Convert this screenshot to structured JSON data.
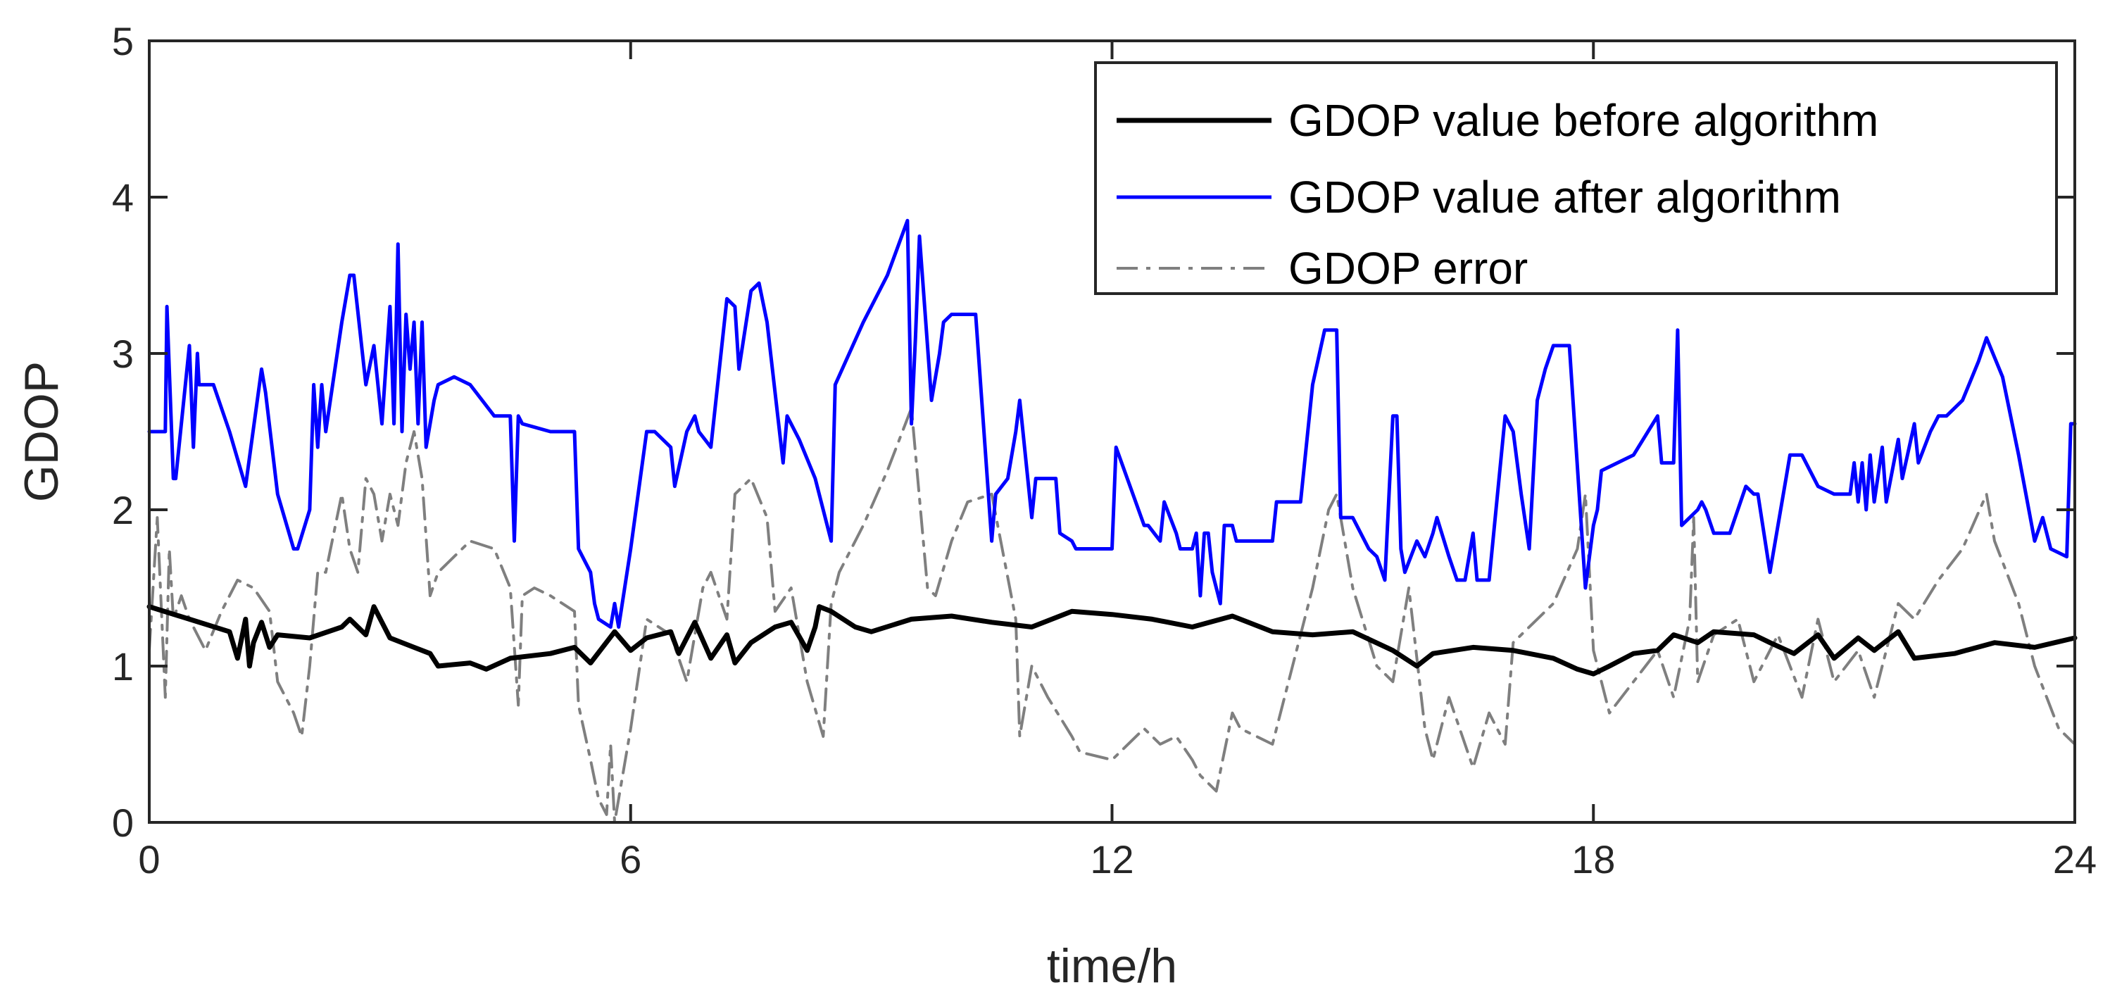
{
  "chart_data": {
    "type": "line",
    "title": "",
    "xlabel": "time/h",
    "ylabel": "GDOP",
    "xlim": [
      0,
      24
    ],
    "ylim": [
      0,
      5
    ],
    "xticks": [
      0,
      6,
      12,
      18,
      24
    ],
    "yticks": [
      0,
      1,
      2,
      3,
      4,
      5
    ],
    "grid": false,
    "legend_position": "top-right",
    "series": [
      {
        "name": "GDOP value before algorithm",
        "color": "#000000",
        "style": "solid",
        "x": [
          0,
          0.5,
          1.0,
          1.1,
          1.2,
          1.25,
          1.3,
          1.4,
          1.5,
          1.6,
          2.0,
          2.4,
          2.5,
          2.7,
          2.8,
          3.0,
          3.3,
          3.5,
          3.6,
          4.0,
          4.2,
          4.5,
          5.0,
          5.3,
          5.5,
          5.8,
          6.0,
          6.2,
          6.5,
          6.6,
          6.8,
          7.0,
          7.2,
          7.3,
          7.5,
          7.8,
          8.0,
          8.2,
          8.3,
          8.35,
          8.5,
          8.8,
          9.0,
          9.5,
          10.0,
          10.5,
          11.0,
          11.5,
          12.0,
          12.5,
          13.0,
          13.5,
          14.0,
          14.5,
          15.0,
          15.5,
          15.8,
          16.0,
          16.5,
          17.0,
          17.5,
          17.8,
          18.0,
          18.2,
          18.5,
          18.8,
          19.0,
          19.3,
          19.5,
          20.0,
          20.2,
          20.5,
          20.8,
          21.0,
          21.3,
          21.5,
          21.8,
          22.0,
          22.5,
          23.0,
          23.5,
          24.0
        ],
        "values": [
          1.38,
          1.3,
          1.22,
          1.05,
          1.3,
          1.0,
          1.15,
          1.28,
          1.12,
          1.2,
          1.18,
          1.25,
          1.3,
          1.2,
          1.38,
          1.18,
          1.12,
          1.08,
          1.0,
          1.02,
          0.98,
          1.05,
          1.08,
          1.12,
          1.02,
          1.22,
          1.1,
          1.18,
          1.22,
          1.08,
          1.28,
          1.05,
          1.2,
          1.02,
          1.15,
          1.25,
          1.28,
          1.1,
          1.25,
          1.38,
          1.35,
          1.25,
          1.22,
          1.3,
          1.32,
          1.28,
          1.25,
          1.35,
          1.33,
          1.3,
          1.25,
          1.32,
          1.22,
          1.2,
          1.22,
          1.1,
          1.0,
          1.08,
          1.12,
          1.1,
          1.05,
          0.98,
          0.95,
          1.0,
          1.08,
          1.1,
          1.2,
          1.15,
          1.22,
          1.2,
          1.15,
          1.08,
          1.2,
          1.05,
          1.18,
          1.1,
          1.22,
          1.05,
          1.08,
          1.15,
          1.12,
          1.18
        ]
      },
      {
        "name": "GDOP value after algorithm",
        "color": "#0000ff",
        "style": "solid",
        "x": [
          0,
          0.2,
          0.22,
          0.3,
          0.33,
          0.5,
          0.55,
          0.6,
          0.62,
          0.8,
          1.0,
          1.2,
          1.4,
          1.45,
          1.6,
          1.8,
          1.85,
          2.0,
          2.05,
          2.1,
          2.15,
          2.2,
          2.4,
          2.5,
          2.55,
          2.7,
          2.8,
          2.9,
          3.0,
          3.05,
          3.1,
          3.15,
          3.2,
          3.25,
          3.3,
          3.35,
          3.4,
          3.45,
          3.5,
          3.55,
          3.6,
          3.8,
          4.0,
          4.3,
          4.5,
          4.55,
          4.6,
          4.65,
          5.0,
          5.3,
          5.35,
          5.5,
          5.55,
          5.6,
          5.75,
          5.8,
          5.85,
          6.0,
          6.2,
          6.3,
          6.5,
          6.55,
          6.7,
          6.8,
          6.85,
          7.0,
          7.2,
          7.3,
          7.35,
          7.5,
          7.6,
          7.7,
          7.9,
          7.95,
          8.1,
          8.3,
          8.5,
          8.55,
          8.9,
          9.2,
          9.45,
          9.5,
          9.55,
          9.6,
          9.75,
          9.8,
          9.85,
          9.9,
          10.0,
          10.3,
          10.5,
          10.55,
          10.7,
          10.8,
          10.85,
          11.0,
          11.05,
          11.3,
          11.35,
          11.5,
          11.55,
          11.6,
          11.9,
          12.0,
          12.05,
          12.4,
          12.45,
          12.6,
          12.65,
          12.8,
          12.85,
          13.0,
          13.05,
          13.1,
          13.15,
          13.2,
          13.25,
          13.35,
          13.4,
          13.5,
          13.55,
          13.8,
          14.0,
          14.05,
          14.25,
          14.3,
          14.35,
          14.5,
          14.65,
          14.8,
          14.85,
          15.0,
          15.2,
          15.3,
          15.4,
          15.5,
          15.55,
          15.6,
          15.65,
          15.8,
          15.9,
          16.0,
          16.05,
          16.2,
          16.3,
          16.4,
          16.5,
          16.55,
          16.7,
          16.9,
          17.0,
          17.1,
          17.2,
          17.3,
          17.4,
          17.5,
          17.7,
          17.9,
          18.0,
          18.05,
          18.1,
          18.5,
          18.8,
          18.85,
          19.0,
          19.05,
          19.1,
          19.3,
          19.35,
          19.4,
          19.5,
          19.7,
          19.9,
          20.0,
          20.05,
          20.2,
          20.4,
          20.45,
          20.6,
          20.8,
          21.0,
          21.2,
          21.25,
          21.3,
          21.35,
          21.4,
          21.45,
          21.5,
          21.6,
          21.65,
          21.8,
          21.85,
          22.0,
          22.05,
          22.2,
          22.3,
          22.4,
          22.6,
          22.8,
          22.9,
          23.1,
          23.3,
          23.5,
          23.6,
          23.65,
          23.7,
          23.9,
          23.95,
          24.0
        ],
        "values": [
          2.5,
          2.5,
          3.3,
          2.2,
          2.2,
          3.05,
          2.4,
          3.0,
          2.8,
          2.8,
          2.5,
          2.15,
          2.9,
          2.75,
          2.1,
          1.75,
          1.75,
          2.0,
          2.8,
          2.4,
          2.8,
          2.5,
          3.2,
          3.5,
          3.5,
          2.8,
          3.05,
          2.55,
          3.3,
          2.55,
          3.7,
          2.5,
          3.25,
          2.9,
          3.2,
          2.55,
          3.2,
          2.4,
          2.55,
          2.7,
          2.8,
          2.85,
          2.8,
          2.6,
          2.6,
          1.8,
          2.6,
          2.55,
          2.5,
          2.5,
          1.75,
          1.6,
          1.4,
          1.3,
          1.25,
          1.4,
          1.25,
          1.75,
          2.5,
          2.5,
          2.4,
          2.15,
          2.5,
          2.6,
          2.5,
          2.4,
          3.35,
          3.3,
          2.9,
          3.4,
          3.45,
          3.2,
          2.3,
          2.6,
          2.45,
          2.2,
          1.8,
          2.8,
          3.2,
          3.5,
          3.85,
          2.55,
          3.1,
          3.75,
          2.7,
          2.85,
          3.0,
          3.2,
          3.25,
          3.25,
          1.8,
          2.1,
          2.2,
          2.5,
          2.7,
          1.95,
          2.2,
          2.2,
          1.85,
          1.8,
          1.75,
          1.75,
          1.75,
          1.75,
          2.4,
          1.9,
          1.9,
          1.8,
          2.05,
          1.85,
          1.75,
          1.75,
          1.85,
          1.45,
          1.85,
          1.85,
          1.6,
          1.4,
          1.9,
          1.9,
          1.8,
          1.8,
          1.8,
          2.05,
          2.05,
          2.05,
          2.05,
          2.8,
          3.15,
          3.15,
          1.95,
          1.95,
          1.75,
          1.7,
          1.55,
          2.6,
          2.6,
          1.75,
          1.6,
          1.8,
          1.7,
          1.85,
          1.95,
          1.7,
          1.55,
          1.55,
          1.85,
          1.55,
          1.55,
          2.6,
          2.5,
          2.1,
          1.75,
          2.7,
          2.9,
          3.05,
          3.05,
          1.5,
          1.9,
          2.0,
          2.25,
          2.35,
          2.6,
          2.3,
          2.3,
          3.15,
          1.9,
          2.0,
          2.05,
          2.0,
          1.85,
          1.85,
          2.15,
          2.1,
          2.1,
          1.6,
          2.2,
          2.35,
          2.35,
          2.15,
          2.1,
          2.1,
          2.3,
          2.05,
          2.3,
          2.0,
          2.35,
          2.05,
          2.4,
          2.05,
          2.45,
          2.2,
          2.55,
          2.3,
          2.5,
          2.6,
          2.6,
          2.7,
          2.95,
          3.1,
          2.85,
          2.35,
          1.8,
          1.95,
          1.85,
          1.75,
          1.7,
          2.55,
          2.55
        ]
      },
      {
        "name": "GDOP error",
        "color": "#7f7f7f",
        "style": "dashdot",
        "x": [
          0,
          0.1,
          0.2,
          0.25,
          0.3,
          0.4,
          0.5,
          0.7,
          0.9,
          1.1,
          1.3,
          1.5,
          1.6,
          1.8,
          1.9,
          2.0,
          2.1,
          2.2,
          2.3,
          2.4,
          2.5,
          2.6,
          2.7,
          2.8,
          2.9,
          3.0,
          3.1,
          3.2,
          3.3,
          3.4,
          3.5,
          3.6,
          3.8,
          4.0,
          4.3,
          4.5,
          4.6,
          4.65,
          4.8,
          5.0,
          5.3,
          5.35,
          5.5,
          5.6,
          5.7,
          5.75,
          5.8,
          6.0,
          6.2,
          6.5,
          6.7,
          6.9,
          7.0,
          7.2,
          7.3,
          7.5,
          7.7,
          7.8,
          8.0,
          8.2,
          8.4,
          8.5,
          8.6,
          8.9,
          9.2,
          9.5,
          9.7,
          9.8,
          10.0,
          10.2,
          10.5,
          10.8,
          10.85,
          11.0,
          11.2,
          11.5,
          11.6,
          12.0,
          12.1,
          12.4,
          12.6,
          12.8,
          13.0,
          13.1,
          13.3,
          13.5,
          13.6,
          13.8,
          14.0,
          14.2,
          14.5,
          14.7,
          14.8,
          15.0,
          15.3,
          15.5,
          15.7,
          15.9,
          16.0,
          16.2,
          16.4,
          16.5,
          16.7,
          16.9,
          17.0,
          17.5,
          17.8,
          17.9,
          18.0,
          18.2,
          18.5,
          18.8,
          19.0,
          19.2,
          19.25,
          19.3,
          19.5,
          19.8,
          20.0,
          20.3,
          20.6,
          20.8,
          21.0,
          21.3,
          21.5,
          21.8,
          22.0,
          22.3,
          22.6,
          22.9,
          23.0,
          23.3,
          23.5,
          23.8,
          24.0
        ],
        "values": [
          1.1,
          1.95,
          0.8,
          1.75,
          1.3,
          1.45,
          1.3,
          1.1,
          1.35,
          1.55,
          1.5,
          1.35,
          0.9,
          0.7,
          0.55,
          1.0,
          1.6,
          1.6,
          1.85,
          2.1,
          1.75,
          1.6,
          2.2,
          2.1,
          1.8,
          2.1,
          1.9,
          2.3,
          2.5,
          2.2,
          1.45,
          1.6,
          1.7,
          1.8,
          1.75,
          1.5,
          0.75,
          1.45,
          1.5,
          1.45,
          1.35,
          0.75,
          0.4,
          0.15,
          0.05,
          0.5,
          0.0,
          0.6,
          1.3,
          1.2,
          0.9,
          1.5,
          1.6,
          1.3,
          2.1,
          2.2,
          1.95,
          1.35,
          1.5,
          0.9,
          0.55,
          1.4,
          1.6,
          1.9,
          2.25,
          2.65,
          1.5,
          1.45,
          1.8,
          2.05,
          2.1,
          1.3,
          0.55,
          1.0,
          0.8,
          0.55,
          0.45,
          0.4,
          0.45,
          0.6,
          0.5,
          0.55,
          0.4,
          0.3,
          0.2,
          0.7,
          0.6,
          0.55,
          0.5,
          0.9,
          1.5,
          2.0,
          2.1,
          1.5,
          1.0,
          0.9,
          1.5,
          0.6,
          0.4,
          0.8,
          0.5,
          0.35,
          0.7,
          0.5,
          1.15,
          1.4,
          1.75,
          2.1,
          1.1,
          0.7,
          0.9,
          1.1,
          0.8,
          1.3,
          1.95,
          0.9,
          1.2,
          1.3,
          0.9,
          1.2,
          0.8,
          1.3,
          0.9,
          1.1,
          0.8,
          1.4,
          1.3,
          1.55,
          1.75,
          2.1,
          1.8,
          1.4,
          1.0,
          0.6,
          0.5
        ]
      }
    ]
  }
}
